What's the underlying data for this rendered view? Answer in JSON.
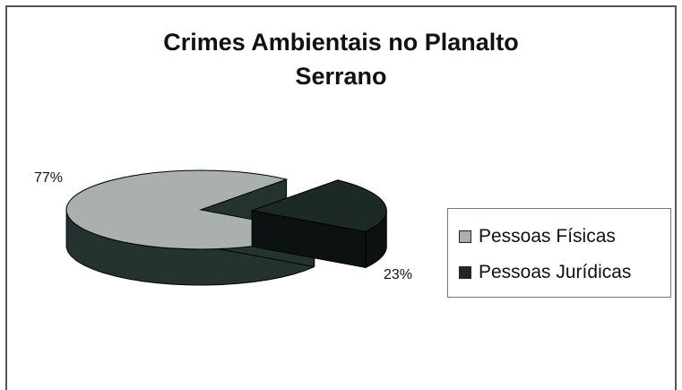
{
  "chart_data": {
    "type": "pie",
    "title_lines": [
      "Crimes Ambientais no Planalto",
      "Serrano"
    ],
    "categories": [
      "Pessoas Físicas",
      "Pessoas Jurídicas"
    ],
    "values": [
      77,
      23
    ],
    "value_labels": [
      "77%",
      "23%"
    ],
    "colors": [
      "#aab0ad",
      "#1c2926"
    ],
    "side_colors": [
      "#243230",
      "#0c1211"
    ],
    "exploded": "Pessoas Jurídicas",
    "legend_position": "right"
  }
}
